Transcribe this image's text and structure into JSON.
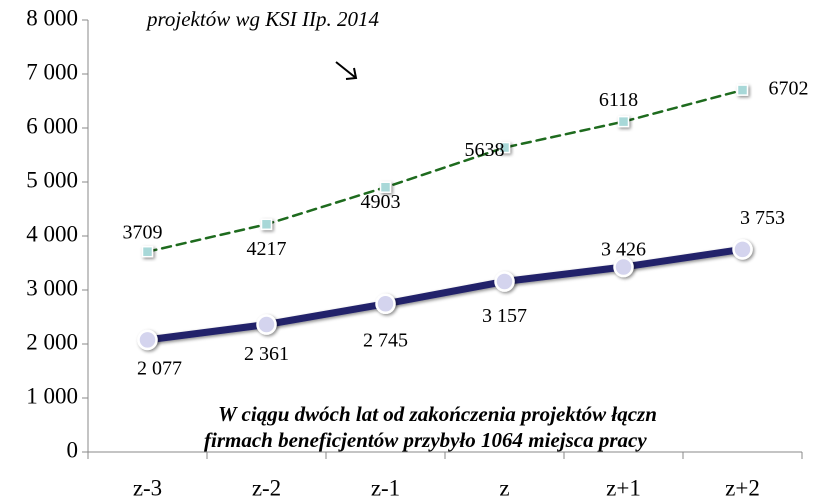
{
  "chart_data": {
    "type": "line",
    "annotations": [
      "projektów wg KSI IIp. 2014",
      "W ciągu dwóch lat od zakończenia projektów łączn",
      "firmach beneficjentów przybyło 1064 miejsca pracy"
    ],
    "categories": [
      "z-3",
      "z-2",
      "z-1",
      "z",
      "z+1",
      "z+2"
    ],
    "series": [
      {
        "color": "#1e6b1e",
        "marker_color": "#a8d8d8",
        "dashed": true,
        "values": [
          3709,
          4217,
          4903,
          5638,
          6118,
          6702
        ]
      },
      {
        "color": "#24246b",
        "marker_color": "#d4d4ee",
        "dashed": false,
        "values": [
          2077,
          2361,
          2745,
          3157,
          3426,
          3753
        ],
        "value_labels": [
          "2 077",
          "2 361",
          "2 745",
          "3 157",
          "3 426",
          "3 753"
        ]
      }
    ],
    "ylim": [
      0,
      8000
    ],
    "yticks": [
      {
        "value": 0,
        "label": "0"
      },
      {
        "value": 1000,
        "label": "1 000"
      },
      {
        "value": 2000,
        "label": "2 000"
      },
      {
        "value": 3000,
        "label": "3 000"
      },
      {
        "value": 4000,
        "label": "4 000"
      },
      {
        "value": 5000,
        "label": "5 000"
      },
      {
        "value": 6000,
        "label": "6 000"
      },
      {
        "value": 7000,
        "label": "7 000"
      },
      {
        "value": 8000,
        "label": "8 000"
      }
    ],
    "grid": false
  }
}
